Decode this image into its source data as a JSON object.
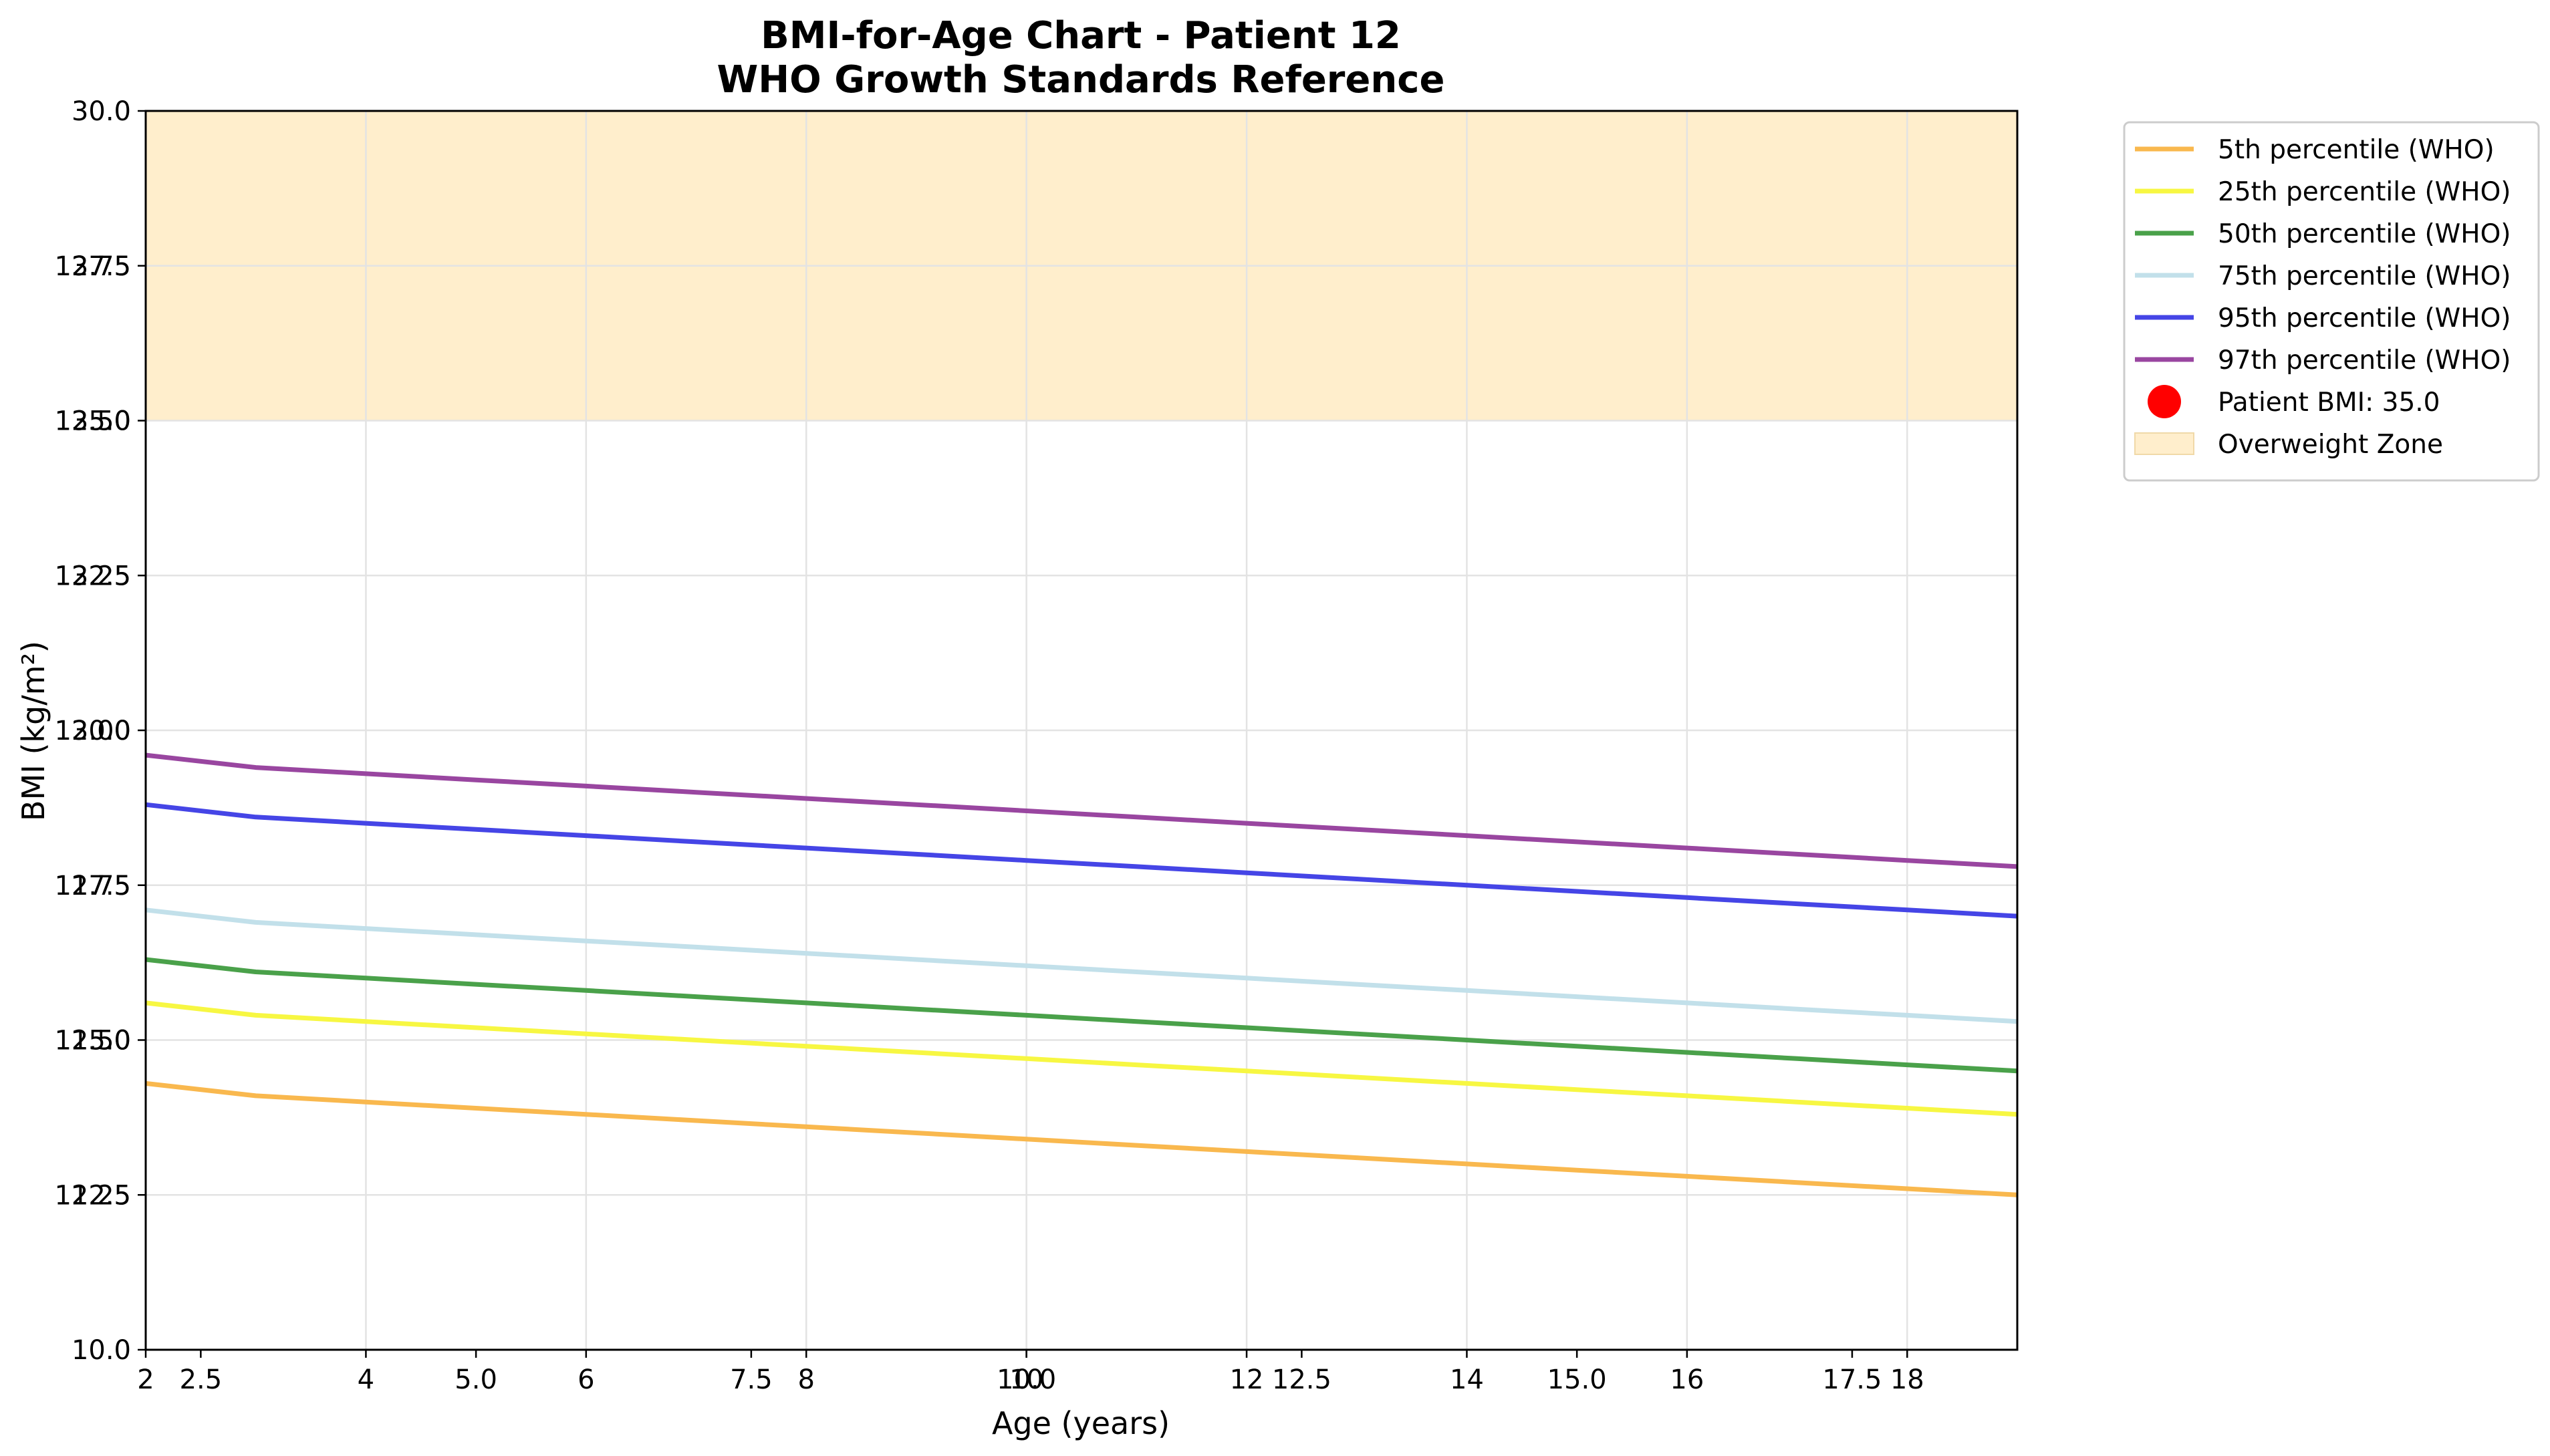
{
  "chart_data": {
    "type": "line",
    "title": [
      "BMI-for-Age Chart - Patient 12",
      "WHO Growth Standards Reference"
    ],
    "xlabel": "Age (years)",
    "ylabel": "BMI (kg/m²)",
    "xlim": [
      2,
      19
    ],
    "ylim": [
      10.0,
      30.0
    ],
    "grid": true,
    "legend_position": "outside right, top",
    "x_ticks_a": [
      2,
      4,
      6,
      8,
      10,
      12,
      14,
      16,
      18
    ],
    "x_ticks_b": [
      "2.5",
      "5.0",
      "7.5",
      "10.0",
      "12.5",
      "15.0",
      "17.5"
    ],
    "y_ticks_main": [
      "10.0",
      "12.5",
      "15.0",
      "17.5",
      "20.0",
      "22.5",
      "25.0",
      "27.5",
      "30.0"
    ],
    "y_ticks_overlay": [
      "12.25",
      "12.50",
      "12.75",
      "13.00",
      "13.25",
      "13.50",
      "13.75"
    ],
    "x": [
      2,
      3,
      4,
      5,
      6,
      7,
      8,
      9,
      10,
      11,
      12,
      13,
      14,
      15,
      16,
      17,
      18,
      19
    ],
    "series": [
      {
        "name": "5th percentile (WHO)",
        "color": "#f9b84e",
        "values": [
          14.3,
          14.1,
          14.0,
          13.9,
          13.8,
          13.7,
          13.6,
          13.5,
          13.4,
          13.3,
          13.2,
          13.1,
          13.0,
          12.9,
          12.8,
          12.7,
          12.6,
          12.5
        ]
      },
      {
        "name": "25th percentile (WHO)",
        "color": "#f7f742",
        "values": [
          15.6,
          15.4,
          15.3,
          15.2,
          15.1,
          15.0,
          14.9,
          14.8,
          14.7,
          14.6,
          14.5,
          14.4,
          14.3,
          14.2,
          14.1,
          14.0,
          13.9,
          13.8
        ]
      },
      {
        "name": "50th percentile (WHO)",
        "color": "#4aa14a",
        "values": [
          16.3,
          16.1,
          16.0,
          15.9,
          15.8,
          15.7,
          15.6,
          15.5,
          15.4,
          15.3,
          15.2,
          15.1,
          15.0,
          14.9,
          14.8,
          14.7,
          14.6,
          14.5
        ]
      },
      {
        "name": "75th percentile (WHO)",
        "color": "#c2e0ea",
        "values": [
          17.1,
          16.9,
          16.8,
          16.7,
          16.6,
          16.5,
          16.4,
          16.3,
          16.2,
          16.1,
          16.0,
          15.9,
          15.8,
          15.7,
          15.6,
          15.5,
          15.4,
          15.3
        ]
      },
      {
        "name": "95th percentile (WHO)",
        "color": "#4545e6",
        "values": [
          18.8,
          18.6,
          18.5,
          18.4,
          18.3,
          18.2,
          18.1,
          18.0,
          17.9,
          17.8,
          17.7,
          17.6,
          17.5,
          17.4,
          17.3,
          17.2,
          17.1,
          17.0
        ]
      },
      {
        "name": "97th percentile (WHO)",
        "color": "#9946a0",
        "values": [
          19.6,
          19.4,
          19.3,
          19.2,
          19.1,
          19.0,
          18.9,
          18.8,
          18.7,
          18.6,
          18.5,
          18.4,
          18.3,
          18.2,
          18.1,
          18.0,
          17.9,
          17.8
        ]
      }
    ],
    "overweight_zone": {
      "from": 25.0,
      "to": 30.0,
      "color": "#ffeecc"
    },
    "legend": [
      {
        "label": "5th percentile (WHO)",
        "kind": "line",
        "color": "#f9b84e"
      },
      {
        "label": "25th percentile (WHO)",
        "kind": "line",
        "color": "#f7f742"
      },
      {
        "label": "50th percentile (WHO)",
        "kind": "line",
        "color": "#4aa14a"
      },
      {
        "label": "75th percentile (WHO)",
        "kind": "line",
        "color": "#c2e0ea"
      },
      {
        "label": "95th percentile (WHO)",
        "kind": "line",
        "color": "#4545e6"
      },
      {
        "label": "97th percentile (WHO)",
        "kind": "line",
        "color": "#9946a0"
      },
      {
        "label": "Patient BMI: 35.0",
        "kind": "marker",
        "color": "#ff0000"
      },
      {
        "label": "Overweight Zone",
        "kind": "patch",
        "color": "#ffeecc"
      }
    ]
  }
}
